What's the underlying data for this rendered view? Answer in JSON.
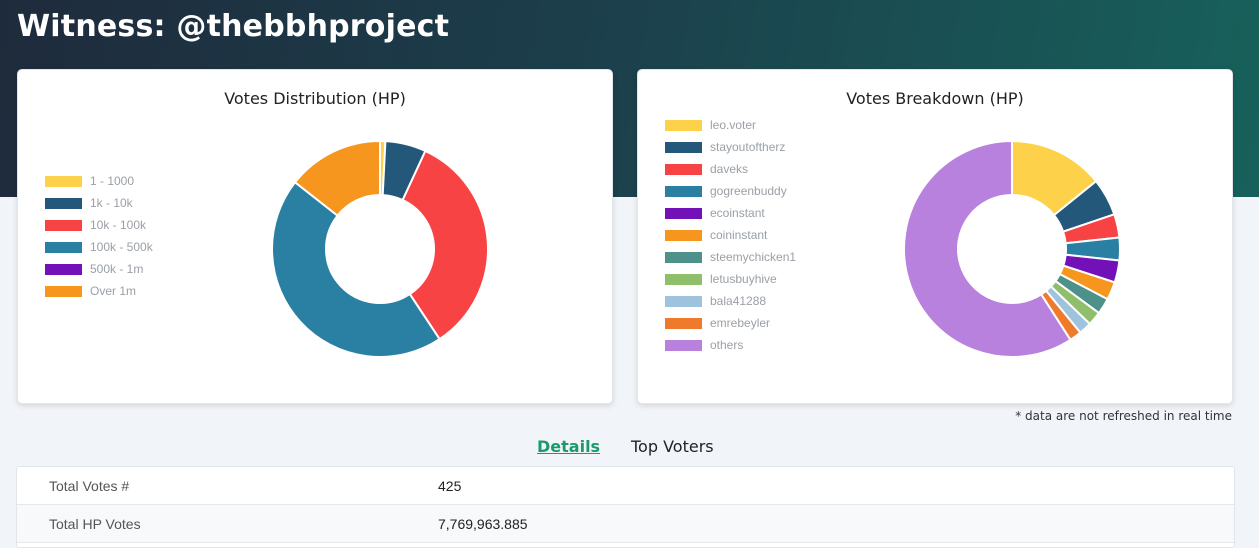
{
  "header": {
    "title": "Witness: @thebbhproject"
  },
  "charts": {
    "distribution": {
      "title": "Votes Distribution (HP)",
      "legend": [
        {
          "label": "1 - 1000",
          "color": "#fdd24a"
        },
        {
          "label": "1k - 10k",
          "color": "#24587a"
        },
        {
          "label": "10k - 100k",
          "color": "#f84345"
        },
        {
          "label": "100k - 500k",
          "color": "#2a80a3"
        },
        {
          "label": "500k - 1m",
          "color": "#7211b7"
        },
        {
          "label": "Over 1m",
          "color": "#f7961e"
        }
      ]
    },
    "breakdown": {
      "title": "Votes Breakdown (HP)",
      "legend": [
        {
          "label": "leo.voter",
          "color": "#fdd24a"
        },
        {
          "label": "stayoutoftherz",
          "color": "#24587a"
        },
        {
          "label": "daveks",
          "color": "#f84345"
        },
        {
          "label": "gogreenbuddy",
          "color": "#2a80a3"
        },
        {
          "label": "ecoinstant",
          "color": "#7211b7"
        },
        {
          "label": "coininstant",
          "color": "#f7961e"
        },
        {
          "label": "steemychicken1",
          "color": "#4e918a"
        },
        {
          "label": "letusbuyhive",
          "color": "#8fbf6a"
        },
        {
          "label": "bala41288",
          "color": "#9ec3dc"
        },
        {
          "label": "emrebeyler",
          "color": "#f07a2c"
        },
        {
          "label": "others",
          "color": "#b881dd"
        }
      ]
    }
  },
  "chart_data": [
    {
      "type": "pie",
      "title": "Votes Distribution (HP)",
      "categories": [
        "1 - 1000",
        "1k - 10k",
        "10k - 100k",
        "100k - 500k",
        "500k - 1m",
        "Over 1m"
      ],
      "values": [
        0.8,
        6.1,
        33.8,
        44.9,
        0,
        14.4
      ],
      "unit": "% of HP"
    },
    {
      "type": "pie",
      "title": "Votes Breakdown (HP)",
      "categories": [
        "leo.voter",
        "stayoutoftherz",
        "daveks",
        "gogreenbuddy",
        "ecoinstant",
        "coininstant",
        "steemychicken1",
        "letusbuyhive",
        "bala41288",
        "emrebeyler",
        "others"
      ],
      "values": [
        14.2,
        5.6,
        3.5,
        3.4,
        3.3,
        2.7,
        2.4,
        2.1,
        1.9,
        1.8,
        59.1
      ],
      "unit": "% of HP"
    }
  ],
  "note": "* data are not refreshed in real time",
  "tabs": {
    "details": "Details",
    "top_voters": "Top Voters"
  },
  "details": [
    {
      "label": "Total Votes #",
      "value": "425"
    },
    {
      "label": "Total HP Votes",
      "value": "7,769,963.885"
    }
  ]
}
